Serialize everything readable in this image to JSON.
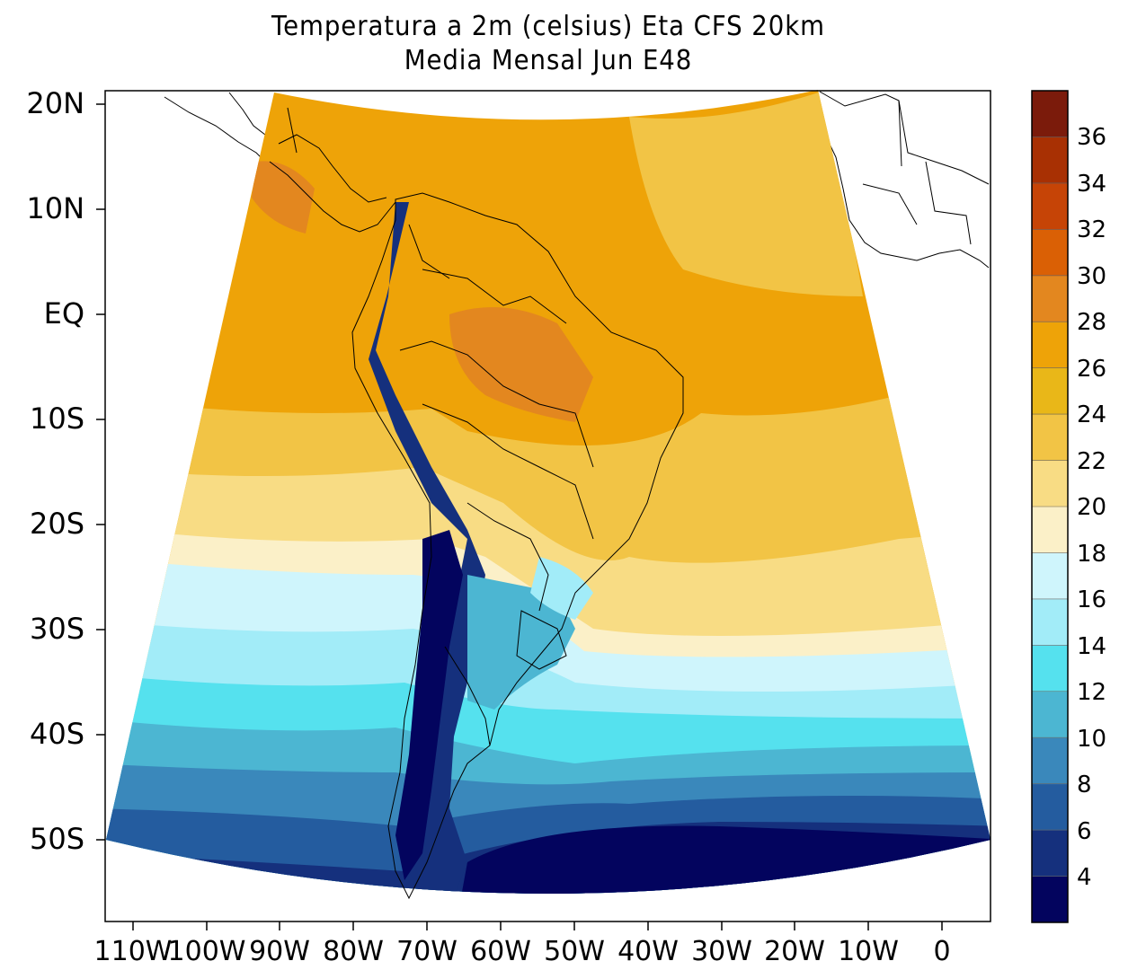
{
  "title": {
    "line1": "Temperatura a 2m (celsius) Eta CFS 20km",
    "line2": "Media Mensal Jun  E48"
  },
  "axes": {
    "y_ticks": [
      "20N",
      "10N",
      "EQ",
      "10S",
      "20S",
      "30S",
      "40S",
      "50S"
    ],
    "x_ticks": [
      "110W",
      "100W",
      "90W",
      "80W",
      "70W",
      "60W",
      "50W",
      "40W",
      "30W",
      "20W",
      "10W",
      "0"
    ]
  },
  "colorbar": {
    "labels": [
      "4",
      "6",
      "8",
      "10",
      "12",
      "14",
      "16",
      "18",
      "20",
      "22",
      "24",
      "26",
      "28",
      "30",
      "32",
      "34",
      "36"
    ],
    "colors": [
      "#03045e",
      "#15307d",
      "#245c9f",
      "#3a88bb",
      "#4cb6d2",
      "#55e1ee",
      "#a2ecf8",
      "#cff5fc",
      "#fbf0c8",
      "#f8dc84",
      "#f2c445",
      "#e9b718",
      "#eea308",
      "#e3871f",
      "#da6005",
      "#c64406",
      "#a83003",
      "#7b1b0b"
    ]
  },
  "legend": {
    "units": "celsius"
  }
}
